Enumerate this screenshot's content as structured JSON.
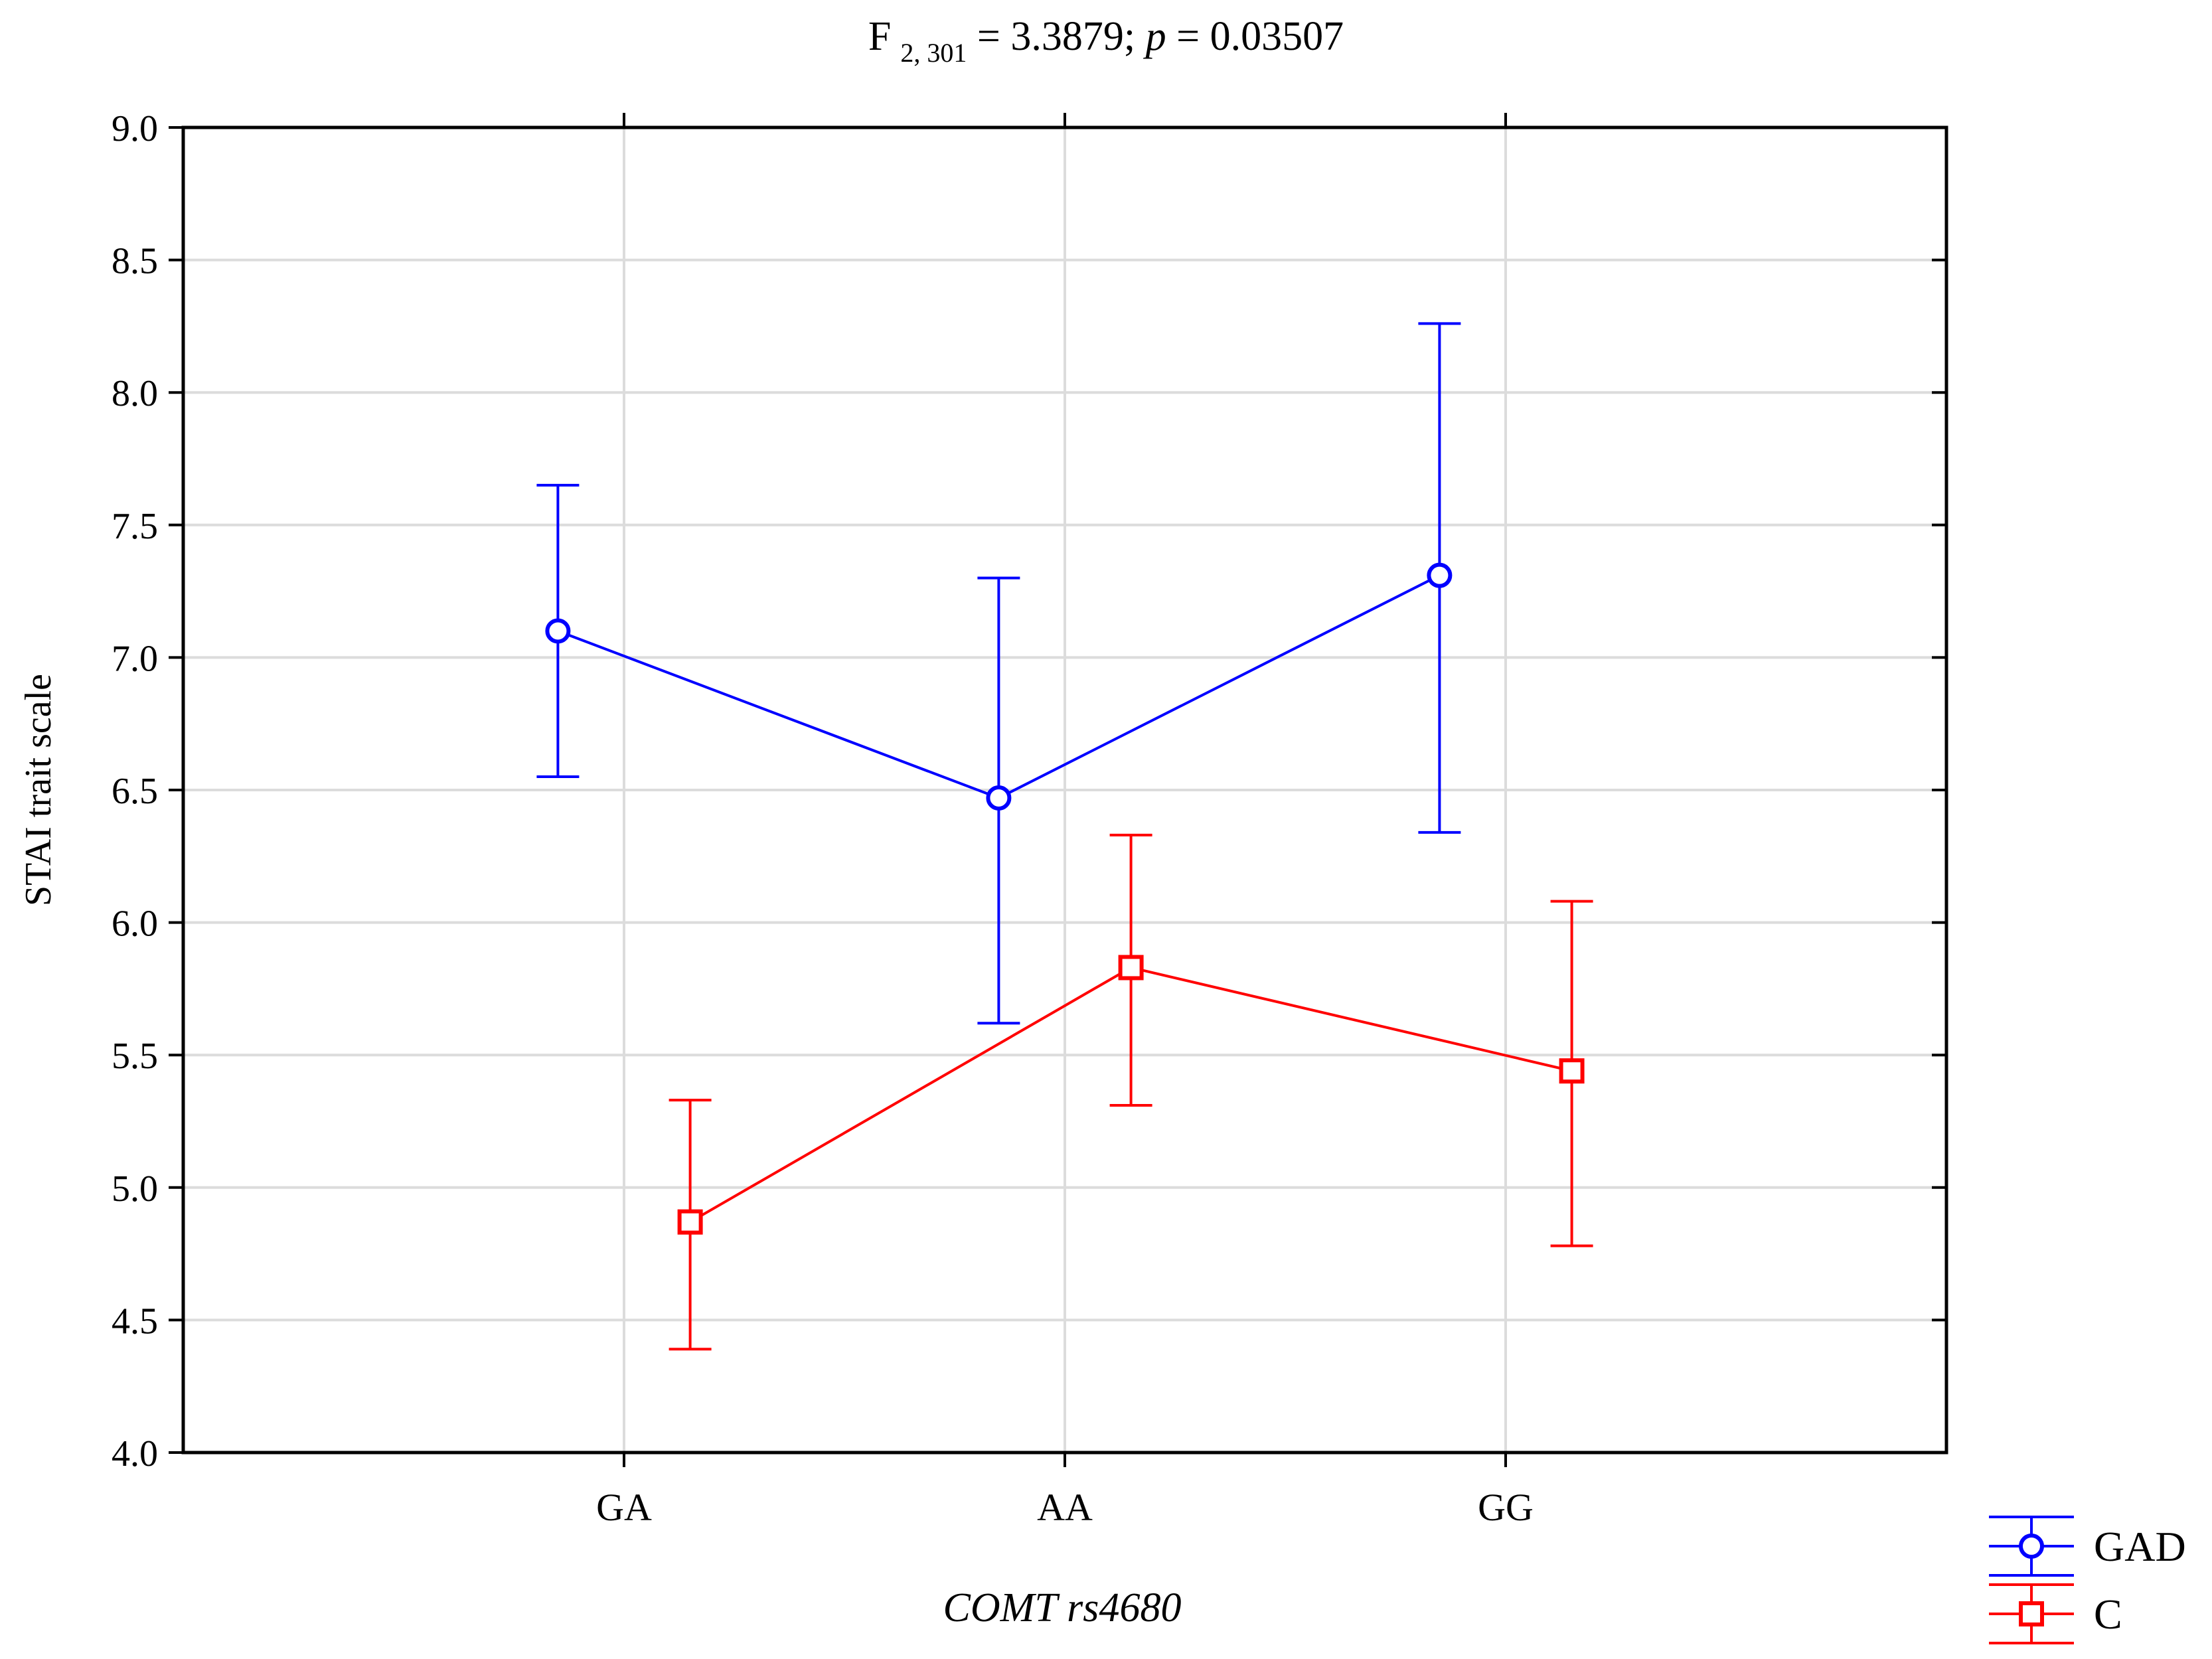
{
  "chart_data": {
    "type": "line",
    "title": {
      "prefix": "F",
      "subscript": "2, 301",
      "stat": " = 3.3879; ",
      "p_label": "p",
      "p_value": " = 0.03507"
    },
    "xlabel": "COMT rs4680",
    "ylabel": "STAI trait scale",
    "categories": [
      "GA",
      "AA",
      "GG"
    ],
    "ylim": [
      4.0,
      9.0
    ],
    "yticks": [
      "4.0",
      "4.5",
      "5.0",
      "5.5",
      "6.0",
      "6.5",
      "7.0",
      "7.5",
      "8.0",
      "8.5",
      "9.0"
    ],
    "grid": true,
    "legend_position": "bottom-right outside",
    "series": [
      {
        "name": "GAD",
        "color": "#0000ff",
        "marker": "circle",
        "offset": -0.15,
        "values": [
          7.1,
          6.47,
          7.31
        ],
        "lower": [
          6.55,
          5.62,
          6.34
        ],
        "upper": [
          7.65,
          7.3,
          8.26
        ]
      },
      {
        "name": "C",
        "color": "#ff0000",
        "marker": "square",
        "offset": 0.15,
        "values": [
          4.87,
          5.83,
          5.44
        ],
        "lower": [
          4.39,
          5.31,
          4.78
        ],
        "upper": [
          5.33,
          6.33,
          6.08
        ]
      }
    ]
  }
}
